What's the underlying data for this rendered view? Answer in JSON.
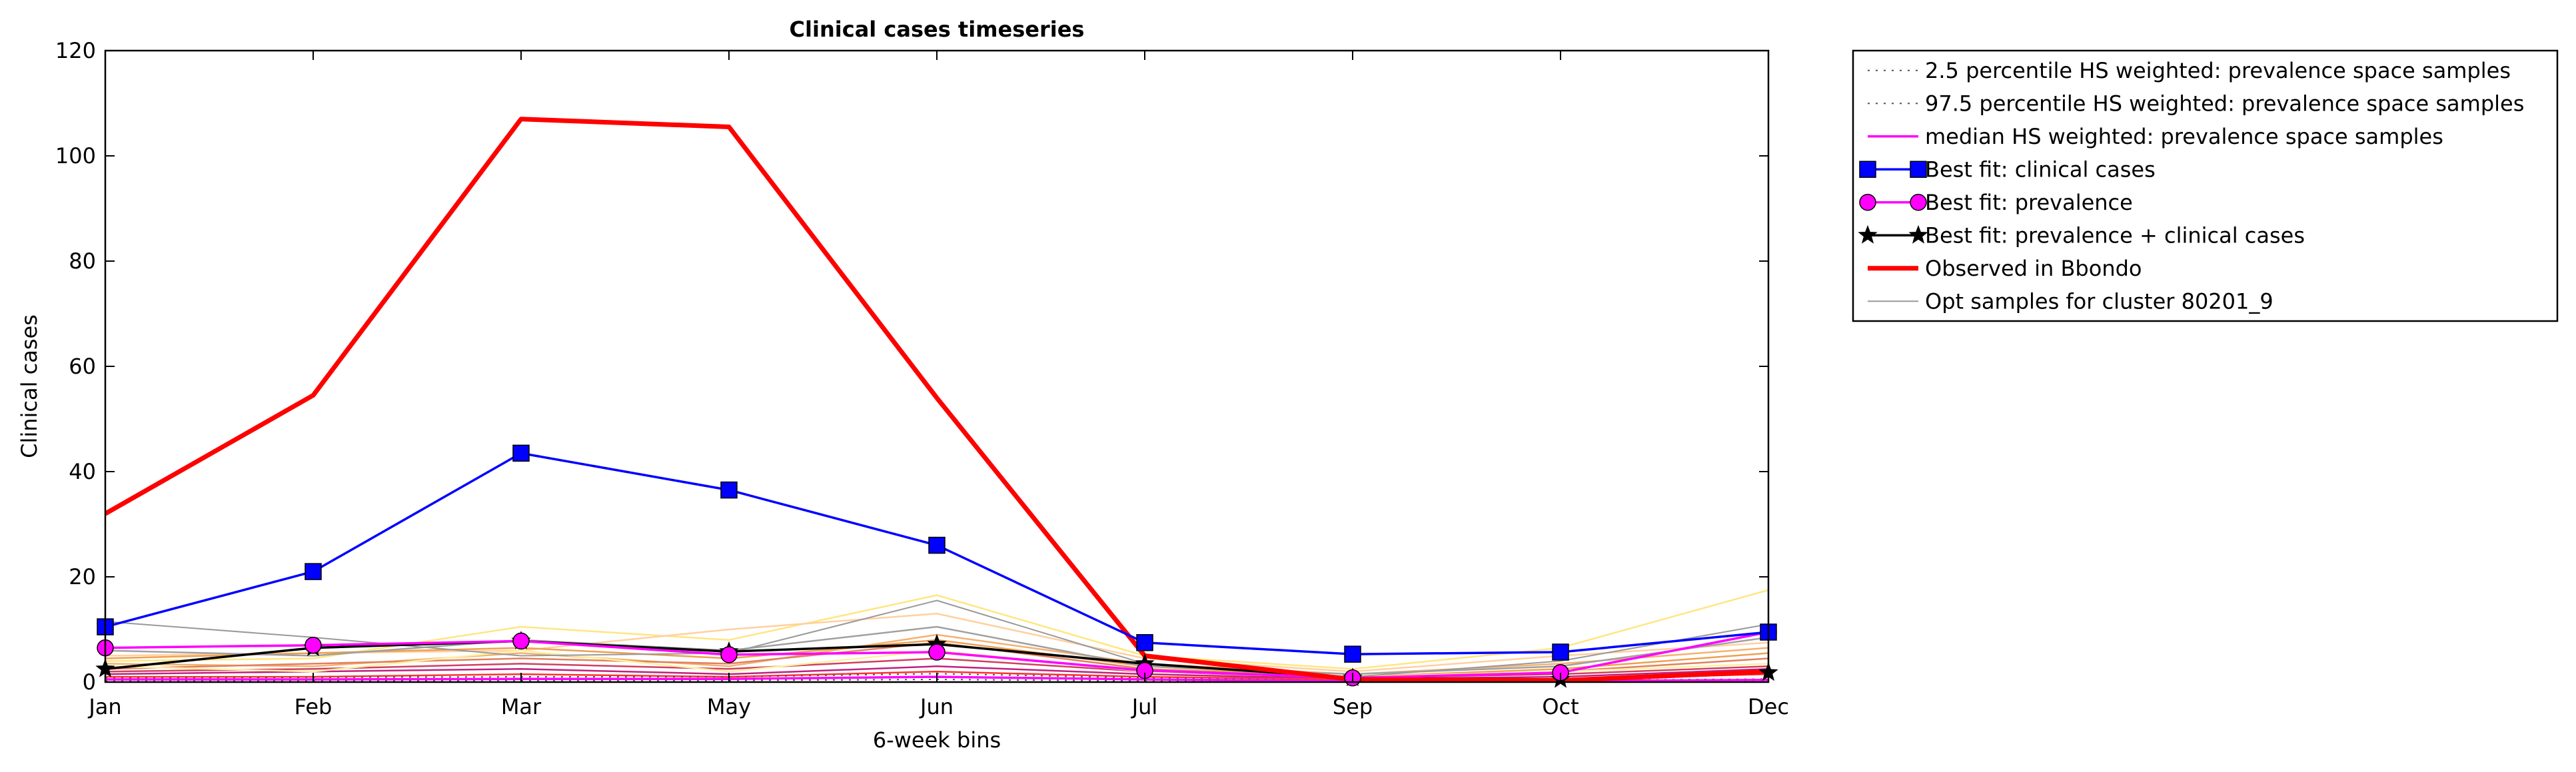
{
  "chart_data": {
    "type": "line",
    "title": "Clinical cases timeseries",
    "xlabel": "6-week bins",
    "ylabel": "Clinical cases",
    "ylim": [
      0,
      120
    ],
    "yticks": [
      "0",
      "20",
      "40",
      "60",
      "80",
      "100",
      "120"
    ],
    "categories": [
      "Jan",
      "Feb",
      "Mar",
      "May",
      "Jun",
      "Jul",
      "Sep",
      "Oct",
      "Dec"
    ],
    "grid": false,
    "legend_position": "outside-right",
    "series": [
      {
        "name": "2.5 percentile HS weighted: prevalence space samples",
        "color": "#555555",
        "style": "dotted",
        "marker": "none",
        "values": [
          0.2,
          0.2,
          0.3,
          0.3,
          0.5,
          0.2,
          0.1,
          0.1,
          0.2
        ]
      },
      {
        "name": "97.5 percentile HS weighted: prevalence space samples",
        "color": "#555555",
        "style": "dotted",
        "marker": "none",
        "values": [
          0.8,
          0.9,
          1.0,
          1.0,
          1.6,
          0.8,
          0.3,
          0.3,
          0.6
        ]
      },
      {
        "name": "median HS weighted: prevalence space samples",
        "color": "#ff00ff",
        "style": "solid",
        "marker": "none",
        "values": [
          0.5,
          0.5,
          0.6,
          0.6,
          1.0,
          0.5,
          0.2,
          0.2,
          0.4
        ]
      },
      {
        "name": "Best fit: clinical cases",
        "color": "#0000ff",
        "style": "solid",
        "marker": "square",
        "values": [
          10.5,
          21,
          43.5,
          36.5,
          26,
          7.5,
          5.3,
          5.7,
          9.5
        ]
      },
      {
        "name": "Best fit: prevalence",
        "color": "#ff00ff",
        "style": "solid",
        "marker": "circle",
        "values": [
          6.5,
          7,
          7.8,
          5.2,
          5.7,
          2.2,
          0.8,
          1.8,
          9.5
        ]
      },
      {
        "name": "Best fit: prevalence + clinical cases",
        "color": "#000000",
        "style": "solid",
        "marker": "star",
        "values": [
          2.5,
          6.5,
          7.8,
          5.8,
          7.2,
          3.5,
          0.8,
          0.5,
          1.8
        ]
      },
      {
        "name": "Observed in Bbondo",
        "color": "#ff0000",
        "style": "solid-thick",
        "marker": "none",
        "values": [
          32,
          54.5,
          107,
          105.5,
          54,
          5,
          0.5,
          0.3,
          2
        ]
      },
      {
        "name": "Opt samples for cluster 80201_9",
        "color": "#999999",
        "style": "thin",
        "marker": "none",
        "values": [
          11.5,
          8.5,
          5,
          5.5,
          15.5,
          3.5,
          1,
          4,
          11
        ]
      }
    ],
    "extra_lines": [
      {
        "color": "#ffe680",
        "values": [
          4,
          4.5,
          10.5,
          8,
          16.5,
          5,
          2.5,
          6.5,
          17.5
        ]
      },
      {
        "color": "#ffd0a0",
        "values": [
          5,
          5.5,
          6,
          10,
          13,
          4.5,
          2,
          5,
          7.5
        ]
      },
      {
        "color": "#f5b070",
        "values": [
          3.5,
          3,
          5.5,
          3,
          9,
          3.5,
          1.5,
          3.5,
          6.5
        ]
      },
      {
        "color": "#eea050",
        "values": [
          4.5,
          5.5,
          6.5,
          4.5,
          8,
          3,
          1,
          2.5,
          5.5
        ]
      },
      {
        "color": "#e08060",
        "values": [
          2.5,
          3.5,
          4.5,
          3.5,
          7.5,
          2.5,
          1,
          2,
          4.5
        ]
      },
      {
        "color": "#d04060",
        "values": [
          2,
          2.5,
          3.5,
          2.5,
          4.5,
          2,
          0.8,
          1.5,
          3
        ]
      },
      {
        "color": "#c02080",
        "values": [
          1.5,
          2,
          2.5,
          1.5,
          3,
          1.5,
          0.6,
          1,
          2.5
        ]
      },
      {
        "color": "#a0a0a0",
        "values": [
          6,
          5,
          8,
          6,
          10.5,
          3,
          1.5,
          3,
          8.5
        ]
      },
      {
        "color": "#fff0a0",
        "values": [
          3,
          2,
          6,
          2,
          6,
          2,
          1,
          2,
          3.5
        ]
      },
      {
        "color": "#ff3030",
        "values": [
          1,
          1,
          1.5,
          1,
          2,
          1,
          0.5,
          0.5,
          1.5
        ]
      }
    ]
  }
}
